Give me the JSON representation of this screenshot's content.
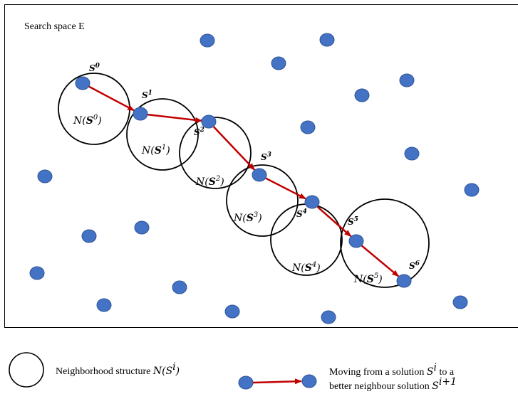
{
  "search_space_label": "Search space E",
  "solutions": [
    {
      "name": "S",
      "sup": "0"
    },
    {
      "name": "S",
      "sup": "1"
    },
    {
      "name": "S",
      "sup": "2"
    },
    {
      "name": "S",
      "sup": "3"
    },
    {
      "name": "S",
      "sup": "4"
    },
    {
      "name": "S",
      "sup": "5"
    },
    {
      "name": "S",
      "sup": "6"
    }
  ],
  "neighborhoods": [
    {
      "prefix": "N(",
      "name": "S",
      "sup": "0",
      "suffix": ")"
    },
    {
      "prefix": "N(",
      "name": "S",
      "sup": "1",
      "suffix": ")"
    },
    {
      "prefix": "N(",
      "name": "S",
      "sup": "2",
      "suffix": ")"
    },
    {
      "prefix": "N(",
      "name": "S",
      "sup": "3",
      "suffix": ")"
    },
    {
      "prefix": "N(",
      "name": "S",
      "sup": "4",
      "suffix": ")"
    },
    {
      "prefix": "N(",
      "name": "S",
      "sup": "5",
      "suffix": ")"
    }
  ],
  "legend": {
    "neighborhood_text": "Neighborhood structure ",
    "neighborhood_math": {
      "prefix": "N(",
      "name": "S",
      "sup": "i",
      "suffix": ")"
    },
    "move_line1_a": "Moving from a solution ",
    "move_line1_math": {
      "name": "S",
      "sup": "i"
    },
    "move_line1_b": " to a",
    "move_line2_a": "better neighbour solution ",
    "move_line2_math": {
      "name": "S",
      "sup": "i+1"
    }
  },
  "colors": {
    "point": "#4472C4",
    "point_stroke": "#2F5597",
    "arrow": "#C00000",
    "circle": "#000000"
  }
}
